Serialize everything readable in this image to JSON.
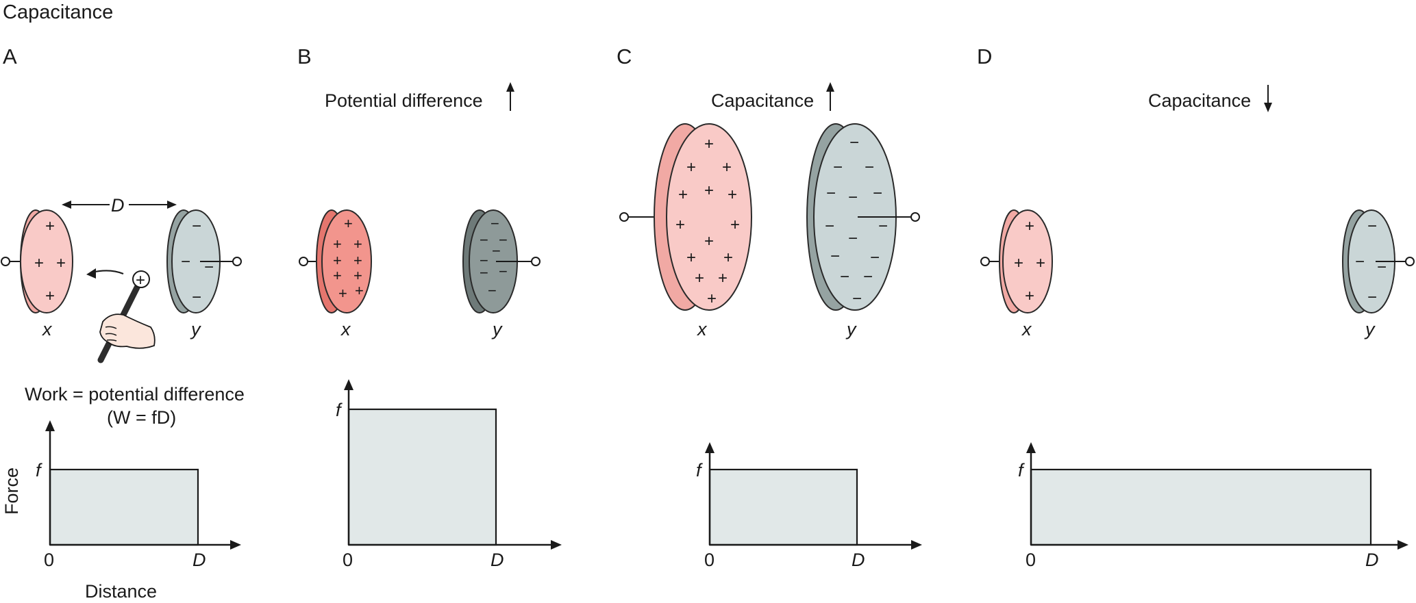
{
  "figure": {
    "title": "Capacitance",
    "colors": {
      "plate_pos_face": "#f9cac7",
      "plate_pos_edge": "#f1a9a4",
      "plate_pos_face_dark": "#f2958d",
      "plate_pos_edge_dark": "#e5766e",
      "plate_neg_face": "#cad6d7",
      "plate_neg_edge": "#95a3a2",
      "plate_neg_face_dark": "#8e9a99",
      "plate_neg_edge_dark": "#6e7a79",
      "graph_fill": "#e1e8e8"
    },
    "panels": [
      {
        "letter": "A",
        "distance_label": "D",
        "plate_x_label": "x",
        "plate_y_label": "y",
        "probe_charge": "+",
        "equation_line1": "Work = potential difference",
        "equation_line2": "(W = fD)",
        "graph": {
          "y_axis": "Force",
          "x_axis": "Distance",
          "y_tick": "f",
          "x_tick_0": "0",
          "x_tick_end": "D"
        }
      },
      {
        "letter": "B",
        "heading": "Potential difference",
        "heading_arrow": "up",
        "plate_x_label": "x",
        "plate_y_label": "y",
        "graph": {
          "y_tick": "f",
          "x_tick_0": "0",
          "x_tick_end": "D"
        }
      },
      {
        "letter": "C",
        "heading": "Capacitance",
        "heading_arrow": "up",
        "plate_x_label": "x",
        "plate_y_label": "y",
        "graph": {
          "y_tick": "f",
          "x_tick_0": "0",
          "x_tick_end": "D"
        }
      },
      {
        "letter": "D",
        "heading": "Capacitance",
        "heading_arrow": "down",
        "plate_x_label": "x",
        "plate_y_label": "y",
        "graph": {
          "y_tick": "f",
          "x_tick_0": "0",
          "x_tick_end": "D"
        }
      }
    ]
  }
}
